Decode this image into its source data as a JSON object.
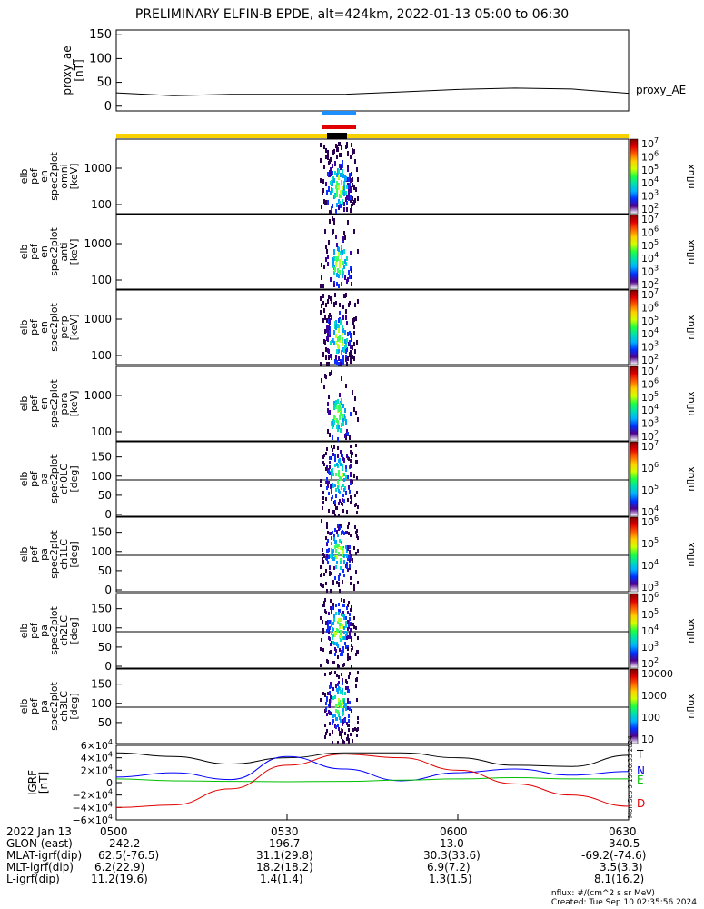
{
  "title": "PRELIMINARY ELFIN-B EPDE, alt=424km, 2022-01-13 05:00 to 06:30",
  "chart_data": [
    {
      "type": "line",
      "panel": "proxy_ae",
      "ylabel_lines": [
        "proxy_ae",
        "[nT]"
      ],
      "legend": "proxy_AE",
      "yticks": [
        "150",
        "100",
        "50",
        "0"
      ],
      "ylim": [
        -10,
        160
      ],
      "x_minutes": [
        0,
        10,
        20,
        30,
        40,
        50,
        60,
        70,
        80,
        90
      ],
      "values": [
        28,
        22,
        25,
        25,
        25,
        30,
        35,
        38,
        36,
        27
      ]
    },
    {
      "type": "heatmap",
      "panel": "en omni",
      "ylabel_lines": [
        "elb",
        "pef",
        "en",
        "spec2plot",
        "omni",
        "[keV]"
      ],
      "yticks": [
        "1000",
        "100"
      ],
      "yscale": "log",
      "colorbar_label": "nflux",
      "colorbar_ticks": [
        "10^7",
        "10^6",
        "10^5",
        "10^4",
        "10^3",
        "10^2"
      ]
    },
    {
      "type": "heatmap",
      "panel": "en anti",
      "ylabel_lines": [
        "elb",
        "pef",
        "en",
        "spec2plot",
        "anti",
        "[keV]"
      ],
      "yticks": [
        "1000",
        "100"
      ],
      "yscale": "log",
      "colorbar_label": "nflux",
      "colorbar_ticks": [
        "10^7",
        "10^6",
        "10^5",
        "10^4",
        "10^3",
        "10^2"
      ]
    },
    {
      "type": "heatmap",
      "panel": "en perp",
      "ylabel_lines": [
        "elb",
        "pef",
        "en",
        "spec2plot",
        "perp",
        "[keV]"
      ],
      "yticks": [
        "1000",
        "100"
      ],
      "yscale": "log",
      "colorbar_label": "nflux",
      "colorbar_ticks": [
        "10^7",
        "10^6",
        "10^5",
        "10^4",
        "10^3",
        "10^2"
      ]
    },
    {
      "type": "heatmap",
      "panel": "en para",
      "ylabel_lines": [
        "elb",
        "pef",
        "en",
        "spec2plot",
        "para",
        "[keV]"
      ],
      "yticks": [
        "1000",
        "100"
      ],
      "yscale": "log",
      "colorbar_label": "nflux",
      "colorbar_ticks": [
        "10^7",
        "10^6",
        "10^5",
        "10^4",
        "10^3",
        "10^2"
      ]
    },
    {
      "type": "heatmap",
      "panel": "pa ch0LC",
      "ylabel_lines": [
        "elb",
        "pef",
        "pa",
        "spec2plot",
        "ch0LC",
        "[deg]"
      ],
      "yticks": [
        "150",
        "100",
        "50",
        "0"
      ],
      "ylim": [
        0,
        180
      ],
      "colorbar_label": "nflux",
      "colorbar_ticks": [
        "10^7",
        "10^6",
        "10^5",
        "10^4"
      ]
    },
    {
      "type": "heatmap",
      "panel": "pa ch1LC",
      "ylabel_lines": [
        "elb",
        "pef",
        "pa",
        "spec2plot",
        "ch1LC",
        "[deg]"
      ],
      "yticks": [
        "150",
        "100",
        "50",
        "0"
      ],
      "ylim": [
        0,
        180
      ],
      "colorbar_label": "nflux",
      "colorbar_ticks": [
        "10^6",
        "10^5",
        "10^4",
        "10^3"
      ]
    },
    {
      "type": "heatmap",
      "panel": "pa ch2LC",
      "ylabel_lines": [
        "elb",
        "pef",
        "pa",
        "spec2plot",
        "ch2LC",
        "[deg]"
      ],
      "yticks": [
        "150",
        "100",
        "50",
        "0"
      ],
      "ylim": [
        0,
        180
      ],
      "colorbar_label": "nflux",
      "colorbar_ticks": [
        "10^6",
        "10^5",
        "10^4",
        "10^3",
        "10^2"
      ]
    },
    {
      "type": "heatmap",
      "panel": "pa ch3LC",
      "ylabel_lines": [
        "elb",
        "pef",
        "pa",
        "spec2plot",
        "ch3LC",
        "[deg]"
      ],
      "yticks": [
        "150",
        "100",
        "50"
      ],
      "ylim": [
        0,
        180
      ],
      "colorbar_label": "nflux",
      "colorbar_ticks": [
        "10000",
        "1000",
        "100",
        "10"
      ]
    },
    {
      "type": "line",
      "panel": "IGRF",
      "ylabel_lines": [
        "IGRF",
        "[nT]"
      ],
      "yticks": [
        "6×10^4",
        "4×10^4",
        "2×10^4",
        "0",
        "−2×10^4",
        "−4×10^4",
        "−6×10^4"
      ],
      "ylim": [
        -60000,
        60000
      ],
      "x_minutes": [
        0,
        10,
        20,
        30,
        40,
        50,
        60,
        70,
        80,
        90
      ],
      "series": [
        {
          "name": "T",
          "values": [
            48000,
            42000,
            30000,
            40000,
            48000,
            48000,
            40000,
            28000,
            26000,
            44000
          ]
        },
        {
          "name": "N",
          "values": [
            9000,
            16000,
            5000,
            42000,
            22000,
            3000,
            16000,
            22000,
            12000,
            18000
          ]
        },
        {
          "name": "E",
          "values": [
            6000,
            3000,
            2000,
            1500,
            2000,
            4000,
            6000,
            8000,
            6000,
            6000
          ]
        },
        {
          "name": "D",
          "values": [
            -40000,
            -36000,
            -10000,
            28000,
            46000,
            40000,
            20000,
            -2000,
            -20000,
            -38000
          ]
        }
      ]
    }
  ],
  "watermark": "Mon Sep 9 19:30:33 2024",
  "footer": {
    "rows": [
      {
        "label": "2022 Jan 13",
        "values": [
          "0500",
          "0530",
          "0600",
          "0630"
        ]
      },
      {
        "label": "GLON (east)",
        "values": [
          "242.2",
          "196.7",
          "13.0",
          "340.5"
        ]
      },
      {
        "label": "MLAT-igrf(dip)",
        "values": [
          "62.5(-76.5)",
          "31.1(29.8)",
          "30.3(33.6)",
          "-69.2(-74.6)"
        ]
      },
      {
        "label": "MLT-igrf(dip)",
        "values": [
          "6.2(22.9)",
          "18.2(18.2)",
          "6.9(7.2)",
          "3.5(3.3)"
        ]
      },
      {
        "label": "L-igrf(dip)",
        "values": [
          "11.2(19.6)",
          "1.4(1.4)",
          "1.3(1.5)",
          "8.1(16.2)"
        ]
      }
    ],
    "units_note": "nflux: #/(cm^2 s sr MeV)",
    "created": "Created: Tue Sep 10 02:35:56 2024"
  },
  "colors": {
    "bar_yellow": "#f7d200",
    "bar_black": "#000000",
    "seg_blue": "#1e8fff",
    "seg_red": "#e00000",
    "T": "#000000",
    "N": "#0000ff",
    "E": "#00c000",
    "D": "#e00000"
  }
}
